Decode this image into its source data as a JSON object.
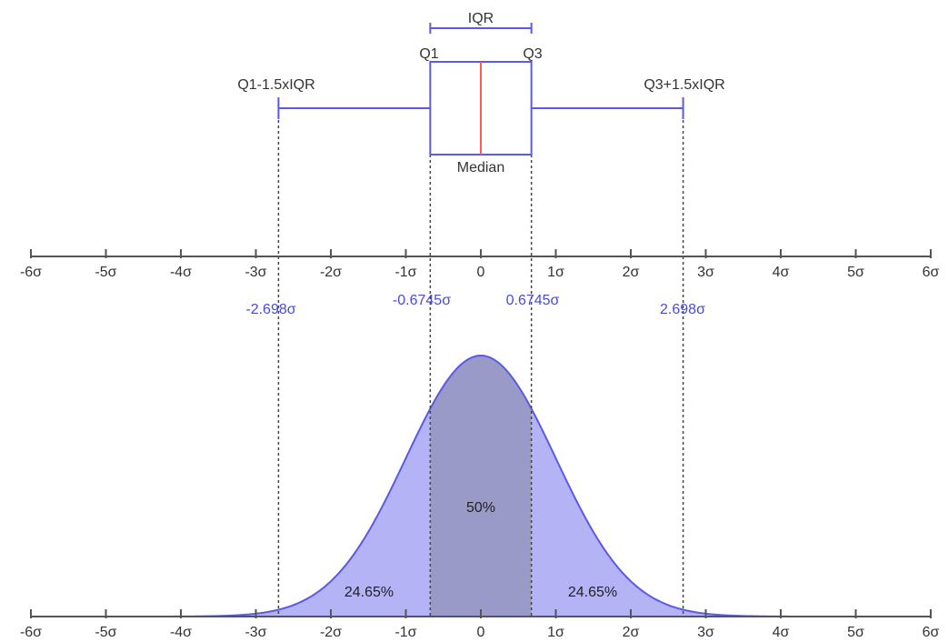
{
  "diagram": {
    "box_plot": {
      "iqr_label": "IQR",
      "q1_label": "Q1",
      "q3_label": "Q3",
      "lower_whisker_label": "Q1-1.5xIQR",
      "upper_whisker_label": "Q3+1.5xIQR",
      "median_label": "Median",
      "q1": -0.6745,
      "q3": 0.6745,
      "median": 0,
      "lower_whisker": -2.698,
      "upper_whisker": 2.698
    },
    "marker_labels": [
      "-2.698σ",
      "-0.6745σ",
      "0.6745σ",
      "2.698σ"
    ],
    "axis_ticks": [
      "-6σ",
      "-5σ",
      "-4σ",
      "-3σ",
      "-2σ",
      "-1σ",
      "0",
      "1σ",
      "2σ",
      "3σ",
      "4σ",
      "5σ",
      "6σ"
    ],
    "axis_range": [
      -6,
      6
    ],
    "distribution": {
      "mean": 0,
      "sd": 1,
      "center_label": "50%",
      "left_label": "24.65%",
      "right_label": "24.65%"
    },
    "colors": {
      "box_line": "#5a5ae8",
      "median_line": "#ff5a5a",
      "fill_light": "#b3b3f5",
      "fill_dark": "#9a9ac8",
      "curve": "#5a5ae8",
      "axis": "#555555",
      "guide": "#444444"
    }
  }
}
